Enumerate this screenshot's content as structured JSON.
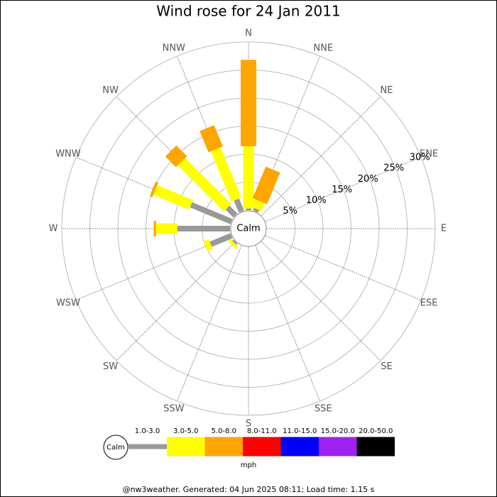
{
  "chart_data": {
    "type": "windrose",
    "title": "Wind rose for 24 Jan 2011",
    "categories": [
      "N",
      "NNE",
      "NE",
      "ENE",
      "E",
      "ESE",
      "SE",
      "SSE",
      "S",
      "SSW",
      "SW",
      "WSW",
      "W",
      "WNW",
      "NW",
      "NNW"
    ],
    "series": [
      {
        "name": "1.0-3.0",
        "color": "#999999",
        "values": [
          0.3,
          0.5,
          0,
          0,
          0,
          0,
          0,
          0,
          0,
          0,
          0.3,
          4.0,
          9.4,
          7.8,
          2.0,
          2.3
        ]
      },
      {
        "name": "3.0-5.0",
        "color": "#ffff00",
        "values": [
          11.1,
          1.5,
          0,
          0,
          0,
          0,
          0,
          0,
          0,
          0,
          0.6,
          1.0,
          3.8,
          6.9,
          11.6,
          9.7
        ]
      },
      {
        "name": "5.0-8.0",
        "color": "#ffa500",
        "values": [
          15.4,
          6.1,
          0,
          0,
          0,
          0,
          0,
          0,
          0,
          0,
          0,
          0,
          0.4,
          0.5,
          2.7,
          4.1
        ]
      },
      {
        "name": "8.0-11.0",
        "color": "#ff0000",
        "values": [
          0,
          0,
          0,
          0,
          0,
          0,
          0,
          0,
          0,
          0,
          0,
          0,
          0,
          0,
          0,
          0
        ]
      },
      {
        "name": "11.0-15.0",
        "color": "#0000ff",
        "values": [
          0,
          0,
          0,
          0,
          0,
          0,
          0,
          0,
          0,
          0,
          0,
          0,
          0,
          0,
          0,
          0
        ]
      },
      {
        "name": "15.0-20.0",
        "color": "#a020f0",
        "values": [
          0,
          0,
          0,
          0,
          0,
          0,
          0,
          0,
          0,
          0,
          0,
          0,
          0,
          0,
          0,
          0
        ]
      },
      {
        "name": "20.0-50.0",
        "color": "#000000",
        "values": [
          0,
          0,
          0,
          0,
          0,
          0,
          0,
          0,
          0,
          0,
          0,
          0,
          0,
          0,
          0,
          0
        ]
      }
    ],
    "rlim": [
      0,
      30
    ],
    "rticks": [
      {
        "value": 5,
        "label": "5%"
      },
      {
        "value": 10,
        "label": "10%"
      },
      {
        "value": 15,
        "label": "15%"
      },
      {
        "value": 20,
        "label": "20%"
      },
      {
        "value": 25,
        "label": "25%"
      },
      {
        "value": 30,
        "label": "30%"
      }
    ],
    "calm_label": "Calm",
    "legend_unit": "mph",
    "footer": "@nw3weather. Generated: 04 Jun 2025 08:11; Load time: 1.15 s"
  }
}
